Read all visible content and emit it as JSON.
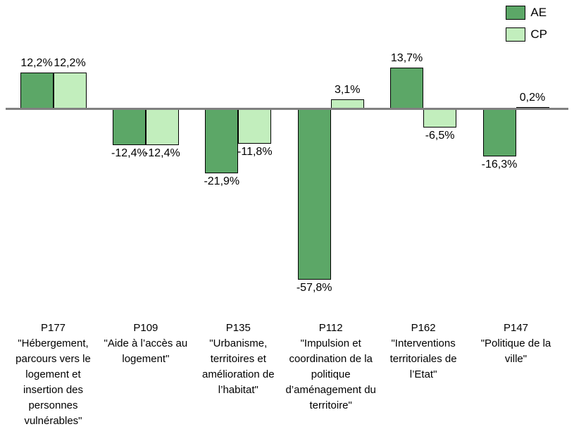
{
  "chart_data": {
    "type": "bar",
    "title": "",
    "xlabel": "",
    "ylabel": "",
    "grid": false,
    "legend_position": "top-right",
    "ylim": [
      -65,
      20
    ],
    "unit": "%",
    "decimal_separator": ",",
    "axis_color": "#808080",
    "bar_border_color": "#000000",
    "categories": [
      {
        "code": "P177",
        "name": "\"Hébergement, parcours vers le logement et insertion des personnes vulnérables\""
      },
      {
        "code": "P109",
        "name": "\"Aide à l’accès au logement\""
      },
      {
        "code": "P135",
        "name": "\"Urbanisme, territoires et amélioration de l’habitat\""
      },
      {
        "code": "P112",
        "name": "\"Impulsion et coordination de la politique d’aménagement du territoire\""
      },
      {
        "code": "P162",
        "name": "\"Interventions territoriales de l’Etat\""
      },
      {
        "code": "P147",
        "name": "\"Politique de la ville\""
      }
    ],
    "series": [
      {
        "name": "AE",
        "color": "#5CA767",
        "values": [
          12.2,
          -12.4,
          -21.9,
          -57.8,
          13.7,
          -16.3
        ],
        "value_labels": [
          "12,2%",
          "-12,4%",
          "-21,9%",
          "-57,8%",
          "13,7%",
          "-16,3%"
        ]
      },
      {
        "name": "CP",
        "color": "#C2EEBD",
        "values": [
          12.2,
          -12.4,
          -11.8,
          3.1,
          -6.5,
          0.2
        ],
        "value_labels": [
          "12,2%",
          "-12,4%",
          "-11,8%",
          "3,1%",
          "-6,5%",
          "0,2%"
        ]
      }
    ]
  }
}
